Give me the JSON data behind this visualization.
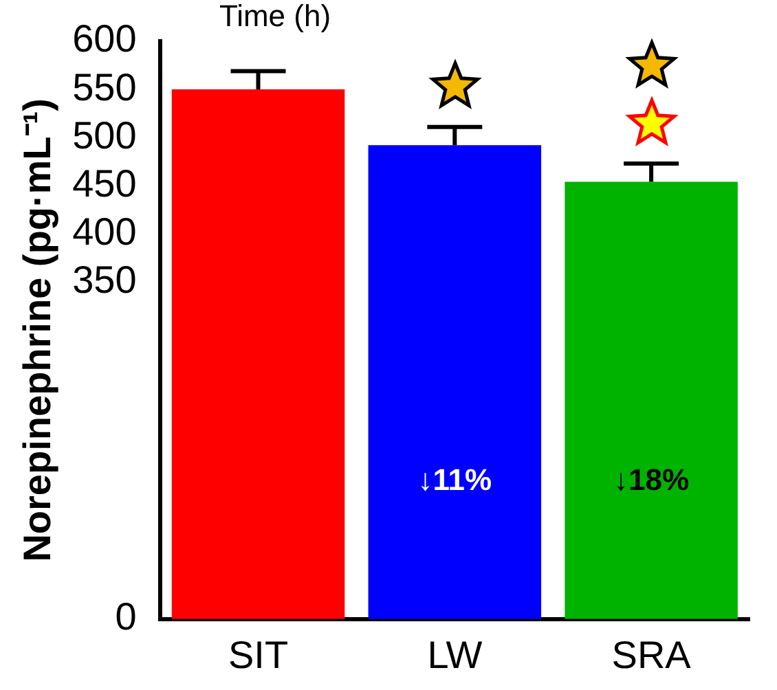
{
  "chart_data": {
    "type": "bar",
    "ylabel": "Norepinephrine (pg·mL⁻¹)",
    "categories": [
      "SIT",
      "LW",
      "SRA"
    ],
    "values": [
      550,
      492,
      454
    ],
    "colors": [
      "#ff0000",
      "#0000ff",
      "#00b300"
    ],
    "errors": [
      19,
      19,
      19
    ],
    "ylim": [
      0,
      600
    ],
    "yticks": [
      0,
      350,
      400,
      450,
      500,
      550,
      600
    ],
    "annotations": [
      "Time (h)",
      "↓11%",
      "↓18%"
    ],
    "grid": false,
    "legend": false
  }
}
